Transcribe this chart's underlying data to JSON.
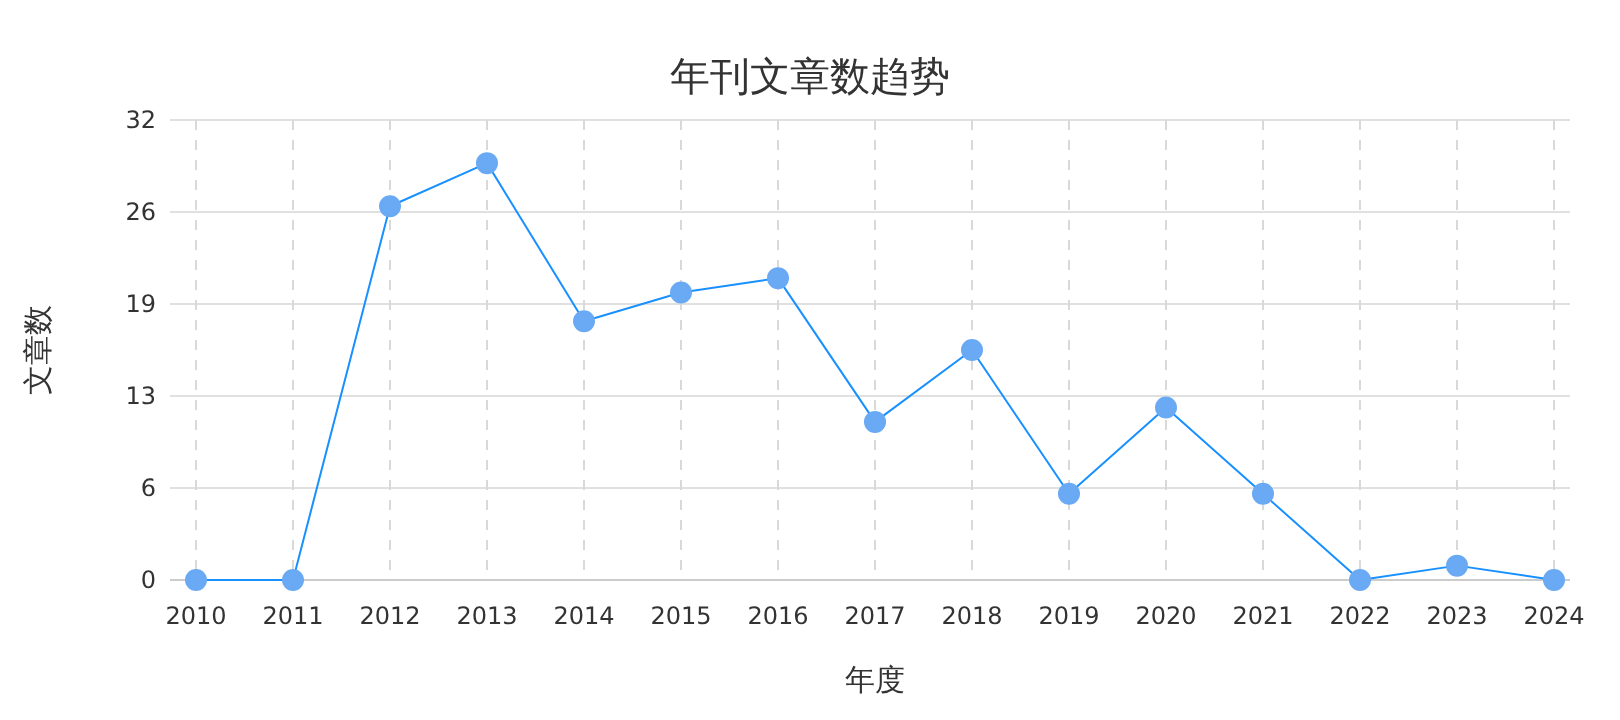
{
  "chart_data": {
    "type": "line",
    "title": "年刊文章数趋势",
    "xlabel": "年度",
    "ylabel": "文章数",
    "categories": [
      "2010",
      "2011",
      "2012",
      "2013",
      "2014",
      "2015",
      "2016",
      "2017",
      "2018",
      "2019",
      "2020",
      "2021",
      "2022",
      "2023",
      "2024"
    ],
    "series": [
      {
        "color": "#1890ff",
        "values": [
          0,
          0,
          26,
          29,
          18,
          20,
          21,
          11,
          16,
          6,
          12,
          6,
          0,
          1,
          0
        ]
      }
    ],
    "ylim": [
      0,
      32
    ],
    "yticks": [
      0,
      {
        "value": 6.4,
        "label": "6"
      },
      {
        "value": 12.8,
        "label": "13"
      },
      {
        "value": 19.2,
        "label": "19"
      },
      {
        "value": 25.6,
        "label": "26"
      },
      32
    ],
    "grid": true,
    "marker": "circle",
    "line_style": "solid"
  }
}
